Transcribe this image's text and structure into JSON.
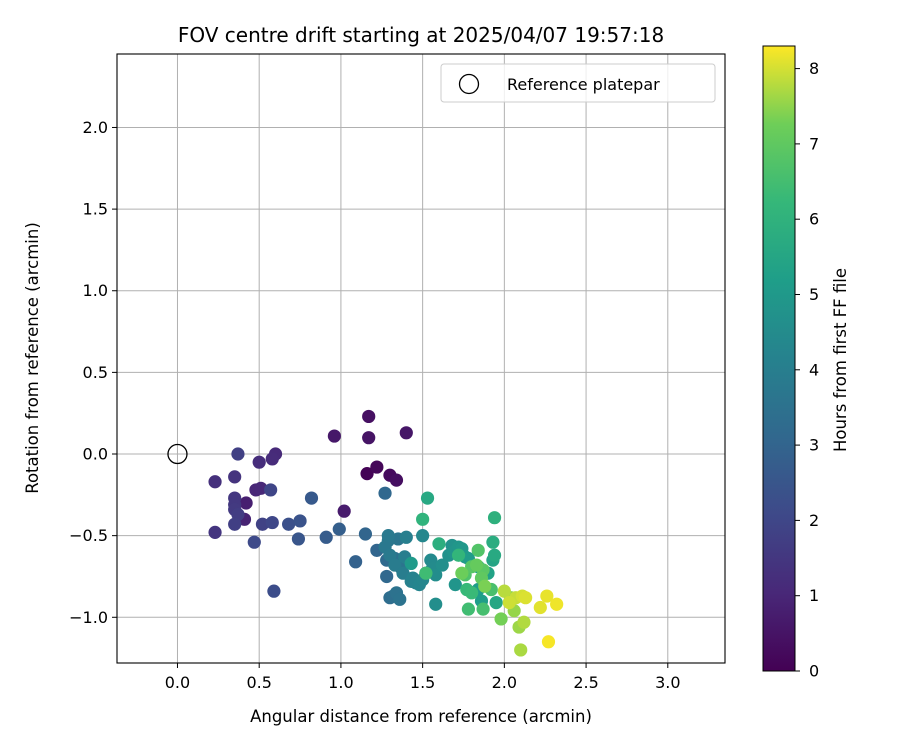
{
  "chart_data": {
    "type": "scatter",
    "title": "FOV centre drift starting at 2025/04/07 19:57:18",
    "xlabel": "Angular distance from reference (arcmin)",
    "ylabel": "Rotation from reference (arcmin)",
    "xlim": [
      -0.37,
      3.35
    ],
    "ylim": [
      -1.28,
      2.45
    ],
    "xticks": [
      0.0,
      0.5,
      1.0,
      1.5,
      2.0,
      2.5,
      3.0
    ],
    "xtick_labels": [
      "0.0",
      "0.5",
      "1.0",
      "1.5",
      "2.0",
      "2.5",
      "3.0"
    ],
    "yticks": [
      -1.0,
      -0.5,
      0.0,
      0.5,
      1.0,
      1.5,
      2.0
    ],
    "ytick_labels": [
      "−1.0",
      "−0.5",
      "0.0",
      "0.5",
      "1.0",
      "1.5",
      "2.0"
    ],
    "grid": true,
    "legend": {
      "placement": "top-right",
      "entries": [
        "Reference platepar"
      ]
    },
    "reference_point": {
      "x": 0.0,
      "y": 0.0
    },
    "colorbar": {
      "label": "Hours from first FF file",
      "colormap": "viridis",
      "range": [
        0,
        8.3
      ],
      "ticks": [
        0,
        1,
        2,
        3,
        4,
        5,
        6,
        7,
        8
      ],
      "tick_labels": [
        "0",
        "1",
        "2",
        "3",
        "4",
        "5",
        "6",
        "7",
        "8"
      ]
    },
    "points": [
      [
        1.16,
        -0.12,
        0.05
      ],
      [
        1.22,
        -0.08,
        0.15
      ],
      [
        1.3,
        -0.13,
        0.25
      ],
      [
        1.34,
        -0.16,
        0.35
      ],
      [
        1.17,
        0.23,
        0.4
      ],
      [
        1.17,
        0.1,
        0.5
      ],
      [
        1.4,
        0.13,
        0.55
      ],
      [
        0.96,
        0.11,
        0.6
      ],
      [
        1.02,
        -0.35,
        0.7
      ],
      [
        0.42,
        -0.3,
        0.8
      ],
      [
        0.41,
        -0.4,
        0.9
      ],
      [
        0.48,
        -0.22,
        1.0
      ],
      [
        0.51,
        -0.21,
        1.05
      ],
      [
        0.6,
        0.0,
        1.1
      ],
      [
        0.58,
        -0.03,
        1.15
      ],
      [
        0.5,
        -0.05,
        1.2
      ],
      [
        0.23,
        -0.17,
        1.3
      ],
      [
        0.35,
        -0.14,
        1.4
      ],
      [
        0.23,
        -0.48,
        1.45
      ],
      [
        0.35,
        -0.27,
        1.5
      ],
      [
        0.35,
        -0.31,
        1.55
      ],
      [
        0.35,
        -0.34,
        1.6
      ],
      [
        0.37,
        -0.37,
        1.7
      ],
      [
        0.35,
        -0.43,
        1.75
      ],
      [
        0.37,
        0.0,
        1.8
      ],
      [
        0.52,
        -0.43,
        1.85
      ],
      [
        0.57,
        -0.22,
        1.95
      ],
      [
        0.58,
        -0.42,
        2.0
      ],
      [
        0.47,
        -0.54,
        2.1
      ],
      [
        0.59,
        -0.84,
        2.2
      ],
      [
        0.68,
        -0.43,
        2.3
      ],
      [
        0.75,
        -0.41,
        2.4
      ],
      [
        0.74,
        -0.52,
        2.5
      ],
      [
        0.82,
        -0.27,
        2.6
      ],
      [
        0.91,
        -0.51,
        2.7
      ],
      [
        0.99,
        -0.46,
        2.8
      ],
      [
        1.09,
        -0.66,
        2.9
      ],
      [
        1.15,
        -0.49,
        3.0
      ],
      [
        1.22,
        -0.59,
        3.05
      ],
      [
        1.27,
        -0.24,
        3.1
      ],
      [
        1.28,
        -0.75,
        3.15
      ],
      [
        1.28,
        -0.65,
        3.2
      ],
      [
        1.3,
        -0.88,
        3.3
      ],
      [
        1.32,
        -0.87,
        3.4
      ],
      [
        1.33,
        -0.64,
        3.45
      ],
      [
        1.34,
        -0.85,
        3.5
      ],
      [
        1.36,
        -0.89,
        3.55
      ],
      [
        1.37,
        -0.7,
        3.6
      ],
      [
        1.35,
        -0.52,
        3.65
      ],
      [
        1.29,
        -0.53,
        3.7
      ],
      [
        1.27,
        -0.57,
        3.75
      ],
      [
        1.29,
        -0.5,
        3.8
      ],
      [
        1.3,
        -0.62,
        3.85
      ],
      [
        1.33,
        -0.68,
        3.9
      ],
      [
        1.38,
        -0.73,
        3.95
      ],
      [
        1.39,
        -0.63,
        4.0
      ],
      [
        1.4,
        -0.51,
        4.05
      ],
      [
        1.43,
        -0.78,
        4.1
      ],
      [
        1.44,
        -0.76,
        4.15
      ],
      [
        1.46,
        -0.79,
        4.2
      ],
      [
        1.48,
        -0.8,
        4.25
      ],
      [
        1.5,
        -0.77,
        4.3
      ],
      [
        1.5,
        -0.5,
        4.35
      ],
      [
        1.52,
        -0.73,
        4.4
      ],
      [
        1.55,
        -0.65,
        4.45
      ],
      [
        1.56,
        -0.7,
        4.5
      ],
      [
        1.58,
        -0.74,
        4.55
      ],
      [
        1.58,
        -0.92,
        4.6
      ],
      [
        1.62,
        -0.68,
        4.65
      ],
      [
        1.66,
        -0.62,
        4.7
      ],
      [
        1.68,
        -0.56,
        4.75
      ],
      [
        1.69,
        -0.6,
        4.8
      ],
      [
        1.7,
        -0.8,
        4.85
      ],
      [
        1.72,
        -0.57,
        4.9
      ],
      [
        1.74,
        -0.58,
        4.95
      ],
      [
        1.76,
        -0.63,
        5.0
      ],
      [
        1.43,
        -0.67,
        5.05
      ],
      [
        1.78,
        -0.64,
        5.1
      ],
      [
        1.84,
        -0.83,
        5.15
      ],
      [
        1.86,
        -0.9,
        5.2
      ],
      [
        1.84,
        -0.69,
        5.25
      ],
      [
        1.9,
        -0.73,
        5.35
      ],
      [
        1.93,
        -0.65,
        5.45
      ],
      [
        1.95,
        -0.91,
        5.5
      ],
      [
        1.53,
        -0.27,
        5.6
      ],
      [
        1.94,
        -0.62,
        5.65
      ],
      [
        1.93,
        -0.54,
        5.75
      ],
      [
        1.6,
        -0.55,
        5.85
      ],
      [
        1.94,
        -0.39,
        5.95
      ],
      [
        1.5,
        -0.4,
        6.05
      ],
      [
        1.72,
        -0.62,
        6.15
      ],
      [
        1.77,
        -0.83,
        6.25
      ],
      [
        1.8,
        -0.85,
        6.3
      ],
      [
        1.52,
        -0.73,
        6.4
      ],
      [
        1.78,
        -0.95,
        6.45
      ],
      [
        1.87,
        -0.95,
        6.55
      ],
      [
        1.92,
        -0.83,
        6.6
      ],
      [
        1.76,
        -0.74,
        6.7
      ],
      [
        1.84,
        -0.59,
        6.75
      ],
      [
        1.8,
        -0.69,
        6.85
      ],
      [
        1.87,
        -0.71,
        6.9
      ],
      [
        1.86,
        -0.76,
        7.0
      ],
      [
        1.83,
        -0.68,
        7.1
      ],
      [
        1.74,
        -0.73,
        7.2
      ],
      [
        1.98,
        -1.01,
        7.3
      ],
      [
        1.88,
        -0.81,
        7.35
      ],
      [
        2.04,
        -0.88,
        7.45
      ],
      [
        2.06,
        -0.96,
        7.55
      ],
      [
        2.09,
        -1.06,
        7.6
      ],
      [
        2.1,
        -1.2,
        7.7
      ],
      [
        2.12,
        -1.03,
        7.75
      ],
      [
        2.0,
        -0.84,
        7.8
      ],
      [
        2.07,
        -0.88,
        7.9
      ],
      [
        2.03,
        -0.91,
        7.95
      ],
      [
        2.11,
        -0.87,
        8.0
      ],
      [
        2.13,
        -0.88,
        8.05
      ],
      [
        2.22,
        -0.94,
        8.1
      ],
      [
        2.26,
        -0.87,
        8.15
      ],
      [
        2.32,
        -0.92,
        8.2
      ],
      [
        2.27,
        -1.15,
        8.25
      ]
    ]
  }
}
